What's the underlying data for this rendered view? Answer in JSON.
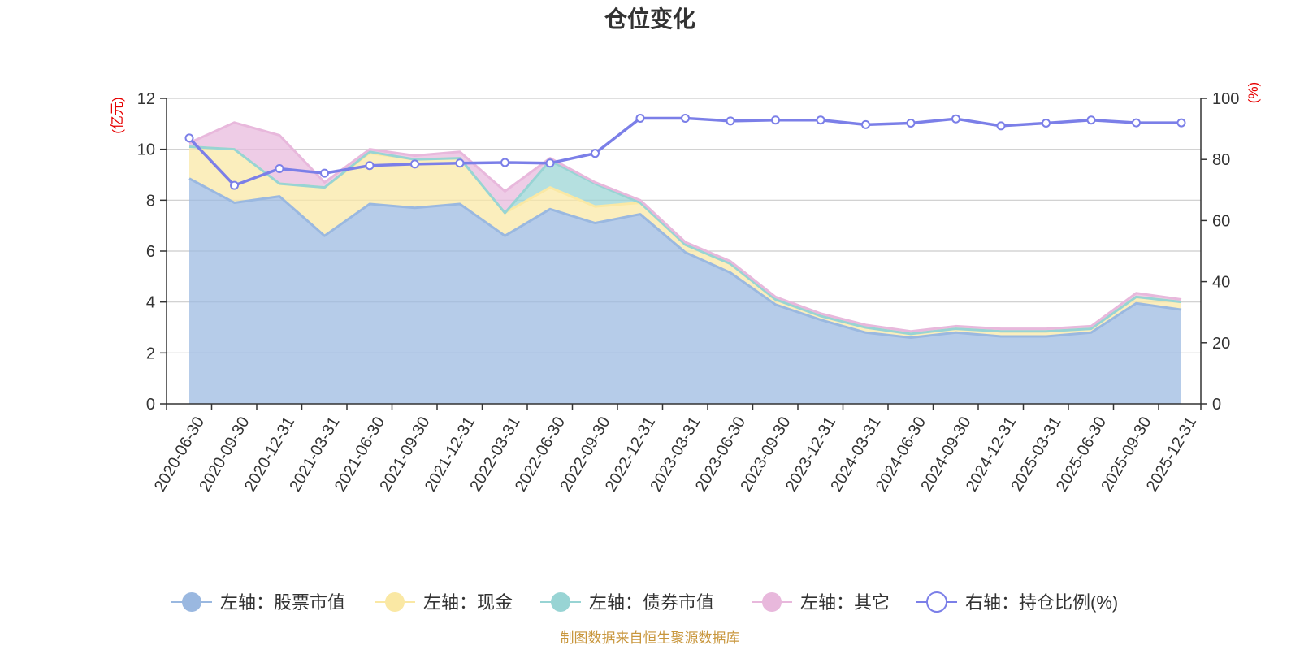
{
  "chart_data": {
    "type": "area",
    "title": "仓位变化",
    "left_axis_unit": "(亿元)",
    "right_axis_unit": "(%)",
    "left_ylim": [
      0,
      12
    ],
    "left_ticks": [
      0,
      2,
      4,
      6,
      8,
      10,
      12
    ],
    "right_ylim": [
      0,
      100
    ],
    "right_ticks": [
      0,
      20,
      40,
      60,
      80,
      100
    ],
    "categories": [
      "2020-06-30",
      "2020-09-30",
      "2020-12-31",
      "2021-03-31",
      "2021-06-30",
      "2021-09-30",
      "2021-12-31",
      "2022-03-31",
      "2022-06-30",
      "2022-09-30",
      "2022-12-31",
      "2023-03-31",
      "2023-06-30",
      "2023-09-30",
      "2023-12-31",
      "2024-03-31",
      "2024-06-30",
      "2024-09-30",
      "2024-12-31",
      "2025-03-31",
      "2025-06-30",
      "2025-09-30",
      "2025-12-31"
    ],
    "series": [
      {
        "name": "左轴：股票市值",
        "axis": "left",
        "type": "area",
        "color": "#9ab8e0",
        "values": [
          8.85,
          7.9,
          8.15,
          6.6,
          7.85,
          7.7,
          7.85,
          6.6,
          7.65,
          7.1,
          7.45,
          5.95,
          5.15,
          3.9,
          3.3,
          2.8,
          2.6,
          2.8,
          2.65,
          2.65,
          2.8,
          3.95,
          3.7
        ]
      },
      {
        "name": "左轴：现金",
        "axis": "left",
        "type": "area",
        "color": "#fae8a4",
        "values": [
          1.25,
          2.1,
          0.5,
          1.9,
          2.0,
          1.9,
          1.8,
          0.9,
          0.85,
          0.65,
          0.45,
          0.3,
          0.35,
          0.2,
          0.15,
          0.2,
          0.15,
          0.15,
          0.2,
          0.2,
          0.15,
          0.25,
          0.3
        ]
      },
      {
        "name": "左轴：债券市值",
        "axis": "left",
        "type": "area",
        "color": "#98d4d4",
        "values": [
          0,
          0,
          0,
          0,
          0.05,
          0,
          0,
          0,
          1.05,
          0.9,
          0,
          0,
          0,
          0,
          0,
          0,
          0,
          0,
          0,
          0,
          0,
          0,
          0
        ]
      },
      {
        "name": "左轴：其它",
        "axis": "left",
        "type": "area",
        "color": "#e8b8dc",
        "values": [
          0.15,
          1.05,
          1.9,
          0.2,
          0.1,
          0.15,
          0.25,
          0.85,
          0.1,
          0.05,
          0.1,
          0.1,
          0.1,
          0.1,
          0.1,
          0.1,
          0.1,
          0.1,
          0.1,
          0.1,
          0.1,
          0.15,
          0.1
        ]
      },
      {
        "name": "右轴：持仓比例(%)",
        "axis": "right",
        "type": "line",
        "color": "#7b7fe8",
        "values": [
          87.0,
          71.5,
          77.0,
          75.5,
          78.0,
          78.5,
          78.8,
          79.0,
          78.8,
          82.0,
          93.5,
          93.5,
          92.6,
          92.9,
          92.9,
          91.4,
          91.9,
          93.3,
          91.0,
          91.9,
          92.9,
          92.0,
          92.0
        ]
      }
    ]
  },
  "source_note": "制图数据来自恒生聚源数据库"
}
